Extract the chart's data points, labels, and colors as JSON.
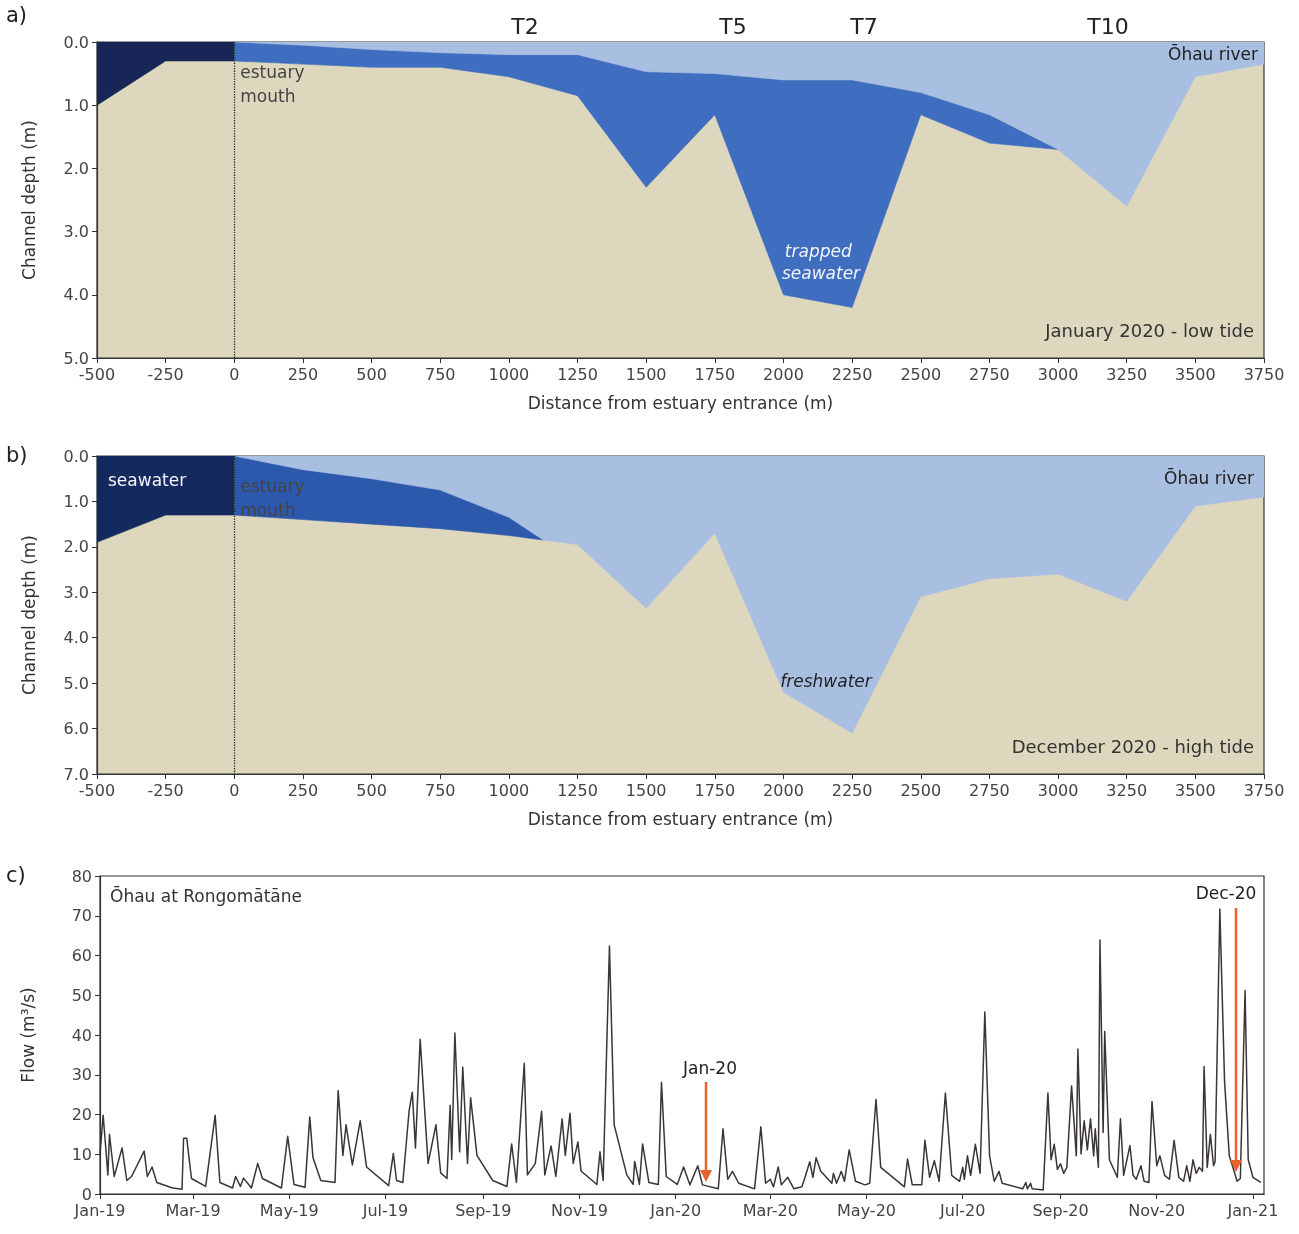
{
  "chart_data": [
    {
      "type": "area",
      "title": "January 2020 - low tide",
      "xlabel": "Distance from estuary entrance (m)",
      "ylabel": "Channel depth (m)",
      "series": [
        {
          "color": "#172656",
          "x": [
            -500,
            -250,
            0
          ],
          "values": [
            1.0,
            0.3,
            0.3
          ]
        },
        {
          "color": "#3f6dbf",
          "x": [
            0,
            250,
            500,
            750,
            1000,
            1250,
            1500,
            1750,
            2000,
            2250,
            2500,
            2750,
            3000
          ],
          "values": [
            0.3,
            0.35,
            0.4,
            0.4,
            0.55,
            0.85,
            2.3,
            1.15,
            4.0,
            4.2,
            1.15,
            1.6,
            1.7
          ]
        },
        {
          "color": "#a9bfe2",
          "x": [
            0,
            250,
            500,
            750,
            1000,
            1250,
            1500,
            1750,
            2000,
            2250,
            2500,
            2750,
            3000,
            3250,
            3500,
            3750
          ],
          "values": [
            0,
            0.05,
            0.12,
            0.17,
            0.2,
            0.2,
            0.47,
            0.5,
            0.6,
            0.6,
            0.8,
            1.15,
            1.7,
            2.6,
            0.55,
            0.35
          ]
        }
      ],
      "xlim": [
        -500,
        3750
      ],
      "xticks": [
        -500,
        -250,
        0,
        250,
        500,
        750,
        1000,
        1250,
        1500,
        1750,
        2000,
        2250,
        2500,
        2750,
        3000,
        3250,
        3500,
        3750
      ],
      "ylim": [
        5,
        0
      ],
      "yticks": [
        {
          "value": 0,
          "label": "0.0"
        },
        {
          "value": 1,
          "label": "1.0"
        },
        {
          "value": 2,
          "label": "2.0"
        },
        {
          "value": 3,
          "label": "3.0"
        },
        {
          "value": 4,
          "label": "4.0"
        },
        {
          "value": 5,
          "label": "5.0"
        }
      ],
      "ref_lines": [
        {
          "axis": "x",
          "value": 0,
          "label": "estuary mouth",
          "line_style": "dotted",
          "color": "#222222"
        }
      ],
      "annotations": [
        "a)",
        "T2",
        "T5",
        "T7",
        "T10",
        "Ōhau river",
        "trapped seawater"
      ]
    },
    {
      "type": "area",
      "title": "December 2020 - high tide",
      "xlabel": "Distance from estuary entrance (m)",
      "ylabel": "Channel depth (m)",
      "series": [
        {
          "color": "#142a5e",
          "x": [
            -500,
            -250,
            0
          ],
          "values": [
            1.9,
            1.3,
            1.3
          ]
        },
        {
          "color": "#2d59ad",
          "x": [
            0,
            250,
            500,
            750,
            1000,
            1125
          ],
          "values": [
            1.3,
            1.4,
            1.5,
            1.6,
            1.75,
            1.85
          ]
        },
        {
          "color": "#a9bfe2",
          "x": [
            0,
            250,
            500,
            750,
            1000,
            1125,
            1250,
            1500,
            1750,
            2000,
            2250,
            2500,
            2750,
            3000,
            3250,
            3500,
            3750
          ],
          "values": [
            0,
            0.3,
            0.5,
            0.75,
            1.35,
            1.85,
            1.95,
            3.35,
            1.7,
            5.2,
            6.1,
            3.1,
            2.7,
            2.6,
            3.2,
            1.1,
            0.9
          ]
        }
      ],
      "xlim": [
        -500,
        3750
      ],
      "xticks": [
        -500,
        -250,
        0,
        250,
        500,
        750,
        1000,
        1250,
        1500,
        1750,
        2000,
        2250,
        2500,
        2750,
        3000,
        3250,
        3500,
        3750
      ],
      "ylim": [
        7,
        0
      ],
      "yticks": [
        {
          "value": 0,
          "label": "0.0"
        },
        {
          "value": 1,
          "label": "1.0"
        },
        {
          "value": 2,
          "label": "2.0"
        },
        {
          "value": 3,
          "label": "3.0"
        },
        {
          "value": 4,
          "label": "4.0"
        },
        {
          "value": 5,
          "label": "5.0"
        },
        {
          "value": 6,
          "label": "6.0"
        },
        {
          "value": 7,
          "label": "7.0"
        }
      ],
      "ref_lines": [
        {
          "axis": "x",
          "value": 0,
          "label": "estuary mouth",
          "line_style": "dotted",
          "color": "#222222"
        }
      ],
      "annotations": [
        "b)",
        "seawater",
        "Ōhau river",
        "freshwater"
      ]
    },
    {
      "type": "line",
      "title": "Ōhau at Rongomātāne",
      "ylabel": "Flow (m³/s)",
      "color": "#3b3535",
      "x": [
        "2019-01-01",
        "2019-01-03",
        "2019-01-06",
        "2019-01-07",
        "2019-01-10",
        "2019-01-15",
        "2019-01-18",
        "2019-01-21",
        "2019-01-29",
        "2019-01-31",
        "2019-02-03",
        "2019-02-06",
        "2019-02-16",
        "2019-02-22",
        "2019-02-23",
        "2019-02-25",
        "2019-02-28",
        "2019-03-09",
        "2019-03-15",
        "2019-03-18",
        "2019-03-26",
        "2019-03-28",
        "2019-03-31",
        "2019-04-02",
        "2019-04-07",
        "2019-04-11",
        "2019-04-14",
        "2019-04-26",
        "2019-04-30",
        "2019-05-04",
        "2019-05-11",
        "2019-05-14",
        "2019-05-16",
        "2019-05-21",
        "2019-05-30",
        "2019-06-01",
        "2019-06-04",
        "2019-06-06",
        "2019-06-10",
        "2019-06-15",
        "2019-06-19",
        "2019-07-03",
        "2019-07-06",
        "2019-07-08",
        "2019-07-12",
        "2019-07-16",
        "2019-07-18",
        "2019-07-20",
        "2019-07-23",
        "2019-07-28",
        "2019-08-02",
        "2019-08-05",
        "2019-08-09",
        "2019-08-11",
        "2019-08-12",
        "2019-08-14",
        "2019-08-17",
        "2019-08-19",
        "2019-08-22",
        "2019-08-24",
        "2019-08-28",
        "2019-09-07",
        "2019-09-16",
        "2019-09-19",
        "2019-09-22",
        "2019-09-27",
        "2019-09-29",
        "2019-10-04",
        "2019-10-08",
        "2019-10-10",
        "2019-10-14",
        "2019-10-17",
        "2019-10-21",
        "2019-10-23",
        "2019-10-26",
        "2019-10-28",
        "2019-10-31",
        "2019-11-02",
        "2019-11-12",
        "2019-11-14",
        "2019-11-16",
        "2019-11-20",
        "2019-11-23",
        "2019-12-01",
        "2019-12-05",
        "2019-12-06",
        "2019-12-09",
        "2019-12-11",
        "2019-12-15",
        "2019-12-21",
        "2019-12-23",
        "2019-12-26",
        "2020-01-02",
        "2020-01-06",
        "2020-01-10",
        "2020-01-15",
        "2020-01-18",
        "2020-01-28",
        "2020-01-31",
        "2020-02-03",
        "2020-02-06",
        "2020-02-10",
        "2020-02-20",
        "2020-02-24",
        "2020-02-27",
        "2020-03-01",
        "2020-03-03",
        "2020-03-06",
        "2020-03-08",
        "2020-03-12",
        "2020-03-16",
        "2020-03-21",
        "2020-03-23",
        "2020-03-26",
        "2020-03-28",
        "2020-03-30",
        "2020-04-02",
        "2020-04-09",
        "2020-04-10",
        "2020-04-12",
        "2020-04-15",
        "2020-04-17",
        "2020-04-20",
        "2020-04-24",
        "2020-04-30",
        "2020-05-03",
        "2020-05-07",
        "2020-05-10",
        "2020-05-25",
        "2020-05-27",
        "2020-05-30",
        "2020-06-05",
        "2020-06-07",
        "2020-06-10",
        "2020-06-13",
        "2020-06-16",
        "2020-06-20",
        "2020-06-24",
        "2020-06-29",
        "2020-07-01",
        "2020-07-02",
        "2020-07-04",
        "2020-07-06",
        "2020-07-09",
        "2020-07-12",
        "2020-07-15",
        "2020-07-18",
        "2020-07-21",
        "2020-07-24",
        "2020-07-26",
        "2020-08-08",
        "2020-08-10",
        "2020-08-11",
        "2020-08-13",
        "2020-08-14",
        "2020-08-21",
        "2020-08-24",
        "2020-08-26",
        "2020-08-28",
        "2020-08-30",
        "2020-09-01",
        "2020-09-03",
        "2020-09-05",
        "2020-09-08",
        "2020-09-11",
        "2020-09-12",
        "2020-09-14",
        "2020-09-16",
        "2020-09-18",
        "2020-09-20",
        "2020-09-22",
        "2020-09-23",
        "2020-09-25",
        "2020-09-26",
        "2020-09-28",
        "2020-09-29",
        "2020-10-02",
        "2020-10-07",
        "2020-10-09",
        "2020-10-11",
        "2020-10-15",
        "2020-10-17",
        "2020-10-19",
        "2020-10-22",
        "2020-10-24",
        "2020-10-27",
        "2020-10-29",
        "2020-11-01",
        "2020-11-03",
        "2020-11-06",
        "2020-11-09",
        "2020-11-12",
        "2020-11-15",
        "2020-11-18",
        "2020-11-20",
        "2020-11-22",
        "2020-11-24",
        "2020-11-26",
        "2020-11-28",
        "2020-11-30",
        "2020-12-01",
        "2020-12-03",
        "2020-12-05",
        "2020-12-07",
        "2020-12-08",
        "2020-12-11",
        "2020-12-14",
        "2020-12-17",
        "2020-12-22",
        "2020-12-24",
        "2020-12-27",
        "2020-12-29",
        "2021-01-01",
        "2021-01-06"
      ],
      "values": [
        10,
        19.8,
        4.8,
        15,
        4.4,
        11.6,
        3.4,
        4.4,
        10.8,
        4.4,
        6.8,
        2.9,
        1.5,
        1.2,
        14,
        14,
        3.9,
        1.9,
        19.8,
        2.9,
        1.5,
        4.4,
        1.9,
        4,
        1.5,
        7.7,
        3.9,
        1.5,
        14.5,
        2.4,
        1.7,
        19.4,
        9.2,
        3.4,
        2.9,
        26,
        9.7,
        17.4,
        7.3,
        18.4,
        6.8,
        2.1,
        10.2,
        3.4,
        2.9,
        21,
        25.6,
        11.6,
        38.9,
        7.7,
        17.4,
        5.3,
        3.9,
        22.3,
        8.7,
        40.5,
        10.6,
        31.9,
        7.7,
        24.2,
        9.7,
        3.4,
        1.9,
        12.6,
        2.9,
        32.9,
        4.8,
        7.7,
        20.8,
        4.8,
        12.1,
        4.4,
        18.9,
        9.7,
        20.3,
        7.7,
        13.1,
        5.8,
        2.4,
        10.6,
        3.4,
        62.4,
        17.4,
        4.8,
        2.4,
        8.2,
        2.4,
        12.6,
        2.9,
        2.4,
        28.1,
        4.4,
        2.4,
        6.8,
        2.3,
        7.1,
        2.3,
        1.3,
        16.4,
        3.7,
        5.7,
        2.7,
        1.3,
        16.9,
        2.7,
        3.7,
        1.8,
        6.8,
        2.3,
        4.2,
        1.3,
        1.8,
        4.2,
        8.1,
        4.2,
        9.1,
        5.7,
        2.7,
        5.2,
        2.7,
        5.7,
        3.2,
        11.1,
        3.2,
        2.3,
        2.7,
        23.8,
        6.7,
        1.8,
        8.8,
        2.3,
        2.3,
        13.5,
        4.2,
        8.4,
        3.2,
        25.4,
        4.7,
        3.2,
        6.7,
        3.7,
        9.6,
        4.7,
        12.5,
        5.2,
        45.8,
        9.6,
        3.2,
        5.7,
        2.7,
        1.3,
        2.9,
        1.3,
        2.7,
        1.3,
        1.0,
        25.4,
        8.6,
        12.5,
        6.2,
        7.6,
        5.2,
        6.7,
        27.2,
        9.6,
        36.5,
        10.1,
        18.4,
        11.1,
        18.9,
        9.6,
        16.4,
        6.7,
        63.9,
        15.5,
        40.9,
        8.6,
        4.2,
        18.9,
        4.7,
        12.2,
        4.7,
        3.7,
        7.1,
        3.2,
        2.9,
        23.3,
        7.1,
        9.6,
        4.7,
        3.7,
        13.5,
        4.2,
        3.2,
        7.1,
        3.2,
        8.6,
        5.2,
        6.7,
        5.7,
        32.1,
        6.7,
        15,
        7.1,
        8.1,
        71.7,
        28.2,
        9.6,
        3.2,
        3.9,
        51.2,
        8.6,
        4.2,
        2.9
      ],
      "xlim": [
        "2019-01-01",
        "2021-01-08"
      ],
      "xticks": [
        {
          "value": "2019-01-01",
          "label": "Jan-19"
        },
        {
          "value": "2019-03-01",
          "label": "Mar-19"
        },
        {
          "value": "2019-05-01",
          "label": "May-19"
        },
        {
          "value": "2019-07-01",
          "label": "Jul-19"
        },
        {
          "value": "2019-09-01",
          "label": "Sep-19"
        },
        {
          "value": "2019-11-01",
          "label": "Nov-19"
        },
        {
          "value": "2020-01-01",
          "label": "Jan-20"
        },
        {
          "value": "2020-03-01",
          "label": "Mar-20"
        },
        {
          "value": "2020-05-01",
          "label": "May-20"
        },
        {
          "value": "2020-07-01",
          "label": "Jul-20"
        },
        {
          "value": "2020-09-01",
          "label": "Sep-20"
        },
        {
          "value": "2020-11-01",
          "label": "Nov-20"
        },
        {
          "value": "2021-01-01",
          "label": "Jan-21"
        }
      ],
      "ylim": [
        0,
        80
      ],
      "yticks": [
        0,
        10,
        20,
        30,
        40,
        50,
        60,
        70,
        80
      ],
      "annotations": [
        "c)",
        "Jan-20",
        "Dec-20"
      ]
    }
  ]
}
